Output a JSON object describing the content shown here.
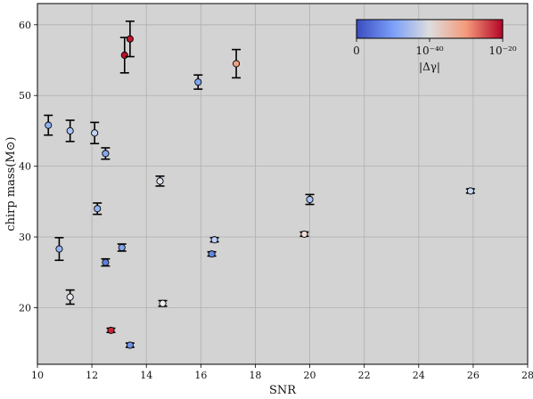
{
  "chart_data": {
    "type": "scatter",
    "xlabel": "SNR",
    "ylabel": "chirp mass(M⊙)",
    "xlim": [
      10,
      28
    ],
    "ylim": [
      12,
      63
    ],
    "xticks": [
      "10",
      "12",
      "14",
      "16",
      "18",
      "20",
      "22",
      "24",
      "26",
      "28"
    ],
    "yticks": [
      "20",
      "30",
      "40",
      "50",
      "60"
    ],
    "grid": true,
    "background": "#d3d3d3",
    "colormap": "coolwarm",
    "colorbar": {
      "placement": "top-right",
      "ticks": [
        "0",
        "10⁻⁴⁰",
        "10⁻²⁰"
      ],
      "label": "|Δγ|"
    },
    "points": [
      {
        "x": 10.4,
        "y": 45.8,
        "yerr": 1.4,
        "color": "#8aaff5"
      },
      {
        "x": 10.8,
        "y": 28.3,
        "yerr": 1.6,
        "color": "#94b6f7"
      },
      {
        "x": 11.2,
        "y": 45.0,
        "yerr": 1.5,
        "color": "#a8c3f8"
      },
      {
        "x": 11.2,
        "y": 21.5,
        "yerr": 1.0,
        "color": "#e6e8ef"
      },
      {
        "x": 12.1,
        "y": 44.7,
        "yerr": 1.5,
        "color": "#c2d4f4"
      },
      {
        "x": 12.2,
        "y": 34.0,
        "yerr": 0.8,
        "color": "#93b5f6"
      },
      {
        "x": 12.5,
        "y": 41.8,
        "yerr": 0.8,
        "color": "#86abf4"
      },
      {
        "x": 12.5,
        "y": 26.4,
        "yerr": 0.5,
        "color": "#5d80e0"
      },
      {
        "x": 12.7,
        "y": 16.8,
        "yerr": 0.3,
        "color": "#c82535"
      },
      {
        "x": 13.1,
        "y": 28.5,
        "yerr": 0.5,
        "color": "#7ca3f0"
      },
      {
        "x": 13.2,
        "y": 55.7,
        "yerr": 2.5,
        "color": "#b5122a"
      },
      {
        "x": 13.4,
        "y": 58.0,
        "yerr": 2.5,
        "color": "#c0162e"
      },
      {
        "x": 13.4,
        "y": 14.7,
        "yerr": 0.3,
        "color": "#6f92e8"
      },
      {
        "x": 14.5,
        "y": 37.9,
        "yerr": 0.7,
        "color": "#dde3ee"
      },
      {
        "x": 14.6,
        "y": 20.6,
        "yerr": 0.4,
        "color": "#f0f0f0"
      },
      {
        "x": 15.9,
        "y": 51.9,
        "yerr": 1.0,
        "color": "#7fa6f2"
      },
      {
        "x": 16.4,
        "y": 27.6,
        "yerr": 0.3,
        "color": "#6186e2"
      },
      {
        "x": 16.5,
        "y": 29.6,
        "yerr": 0.3,
        "color": "#b9d0f9"
      },
      {
        "x": 17.3,
        "y": 54.5,
        "yerr": 2.0,
        "color": "#f3a081"
      },
      {
        "x": 19.8,
        "y": 30.4,
        "yerr": 0.3,
        "color": "#f0ddd3"
      },
      {
        "x": 20.0,
        "y": 35.3,
        "yerr": 0.7,
        "color": "#a9c4f8"
      },
      {
        "x": 25.9,
        "y": 36.5,
        "yerr": 0.3,
        "color": "#c6d6f1"
      }
    ]
  }
}
